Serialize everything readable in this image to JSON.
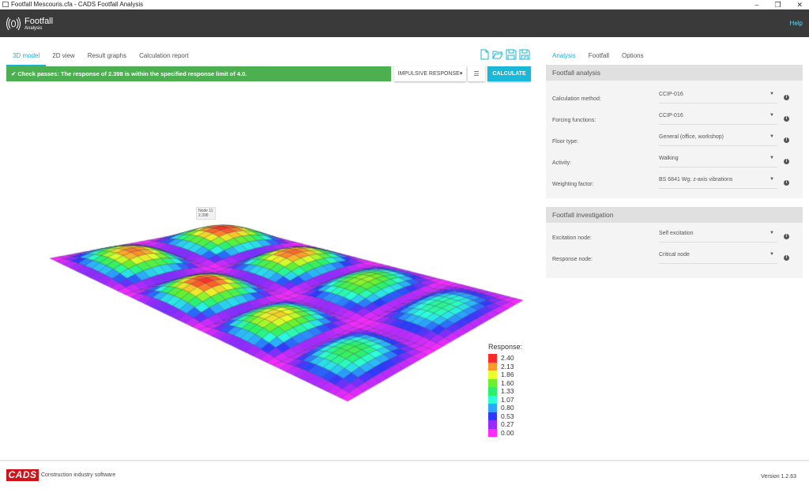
{
  "window": {
    "title": "Footfall Mescouris.cfa - CADS Footfall Analysis",
    "controls": [
      "–",
      "❐",
      "✕"
    ]
  },
  "header": {
    "logo_title": "Footfall",
    "logo_subtitle": "Analysis",
    "help": "Help"
  },
  "main": {
    "tabs": [
      {
        "label": "3D model",
        "active": true
      },
      {
        "label": "2D view"
      },
      {
        "label": "Result graphs"
      },
      {
        "label": "Calculation report"
      }
    ],
    "status": "✔ Check passes: The response of 2.398 is within the specified response limit of 4.0.",
    "status_color": "#4caf50",
    "response_button": "IMPULSIVE RESPONSE▾",
    "settings_icon": "sliders-icon",
    "calculate_button": "CALCULATE",
    "file_icons": [
      "new-file-icon",
      "open-folder-icon",
      "save-icon",
      "save-as-icon"
    ],
    "legend": {
      "title": "Response:",
      "items": [
        {
          "value": "2.40",
          "color": "#ff2a2a"
        },
        {
          "value": "2.13",
          "color": "#ff9a2a"
        },
        {
          "value": "1.86",
          "color": "#e8ff2a"
        },
        {
          "value": "1.60",
          "color": "#6cf02a"
        },
        {
          "value": "1.33",
          "color": "#2af06a"
        },
        {
          "value": "1.07",
          "color": "#2affdc"
        },
        {
          "value": "0.80",
          "color": "#2aa8ff"
        },
        {
          "value": "0.53",
          "color": "#2a3aff"
        },
        {
          "value": "0.27",
          "color": "#9a2aff"
        },
        {
          "value": "0.00",
          "color": "#ff2aff"
        }
      ]
    },
    "peak_label": "Node 11\n2.398"
  },
  "sidebar": {
    "tabs": [
      {
        "label": "Analysis",
        "active": true
      },
      {
        "label": "Footfall"
      },
      {
        "label": "Options"
      }
    ],
    "analysis": {
      "title": "Footfall analysis",
      "rows": [
        {
          "label": "Calculation method:",
          "value": "CCIP-016"
        },
        {
          "label": "Forcing functions:",
          "value": "CCIP-016"
        },
        {
          "label": "Floor type:",
          "value": "General (office, workshop)"
        },
        {
          "label": "Activity:",
          "value": "Walking"
        },
        {
          "label": "Weighting factor:",
          "value": "BS 6841 Wg: z-axis vibrations"
        }
      ]
    },
    "investigation": {
      "title": "Footfall investigation",
      "rows": [
        {
          "label": "Excitation node:",
          "value": "Self excitation"
        },
        {
          "label": "Response node:",
          "value": "Critical node"
        }
      ]
    }
  },
  "footer": {
    "logo": "CADS",
    "tagline": "Construction industry software",
    "version": "Version 1.2.63"
  },
  "accent": "#1ab8d8"
}
